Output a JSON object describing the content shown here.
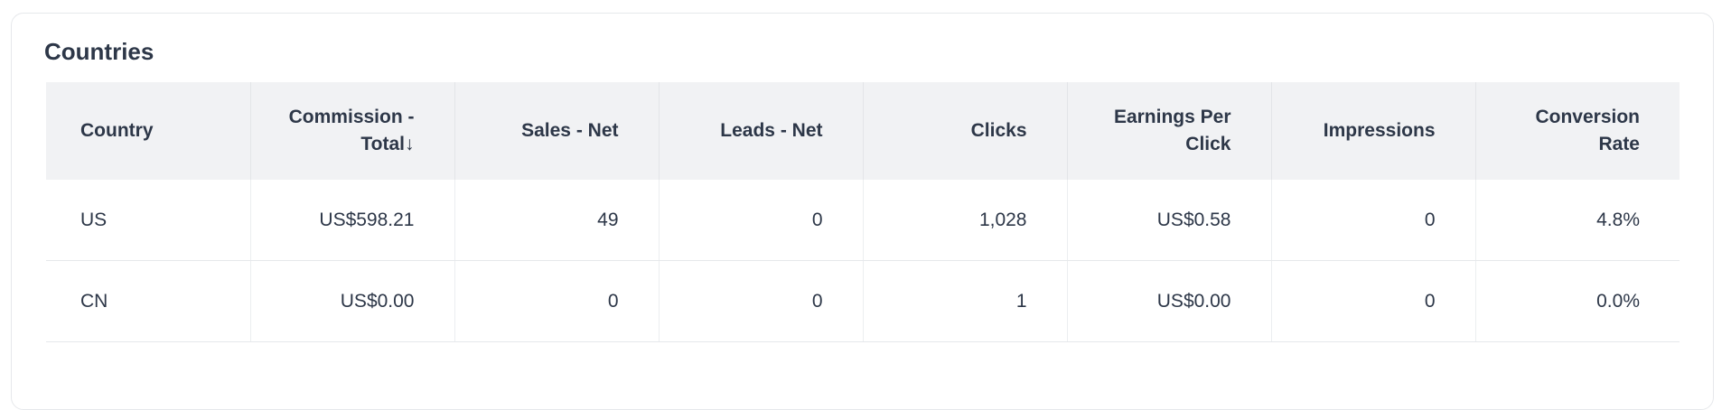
{
  "title": "Countries",
  "columns": [
    "Country",
    "Commission - Total",
    "Sales - Net",
    "Leads - Net",
    "Clicks",
    "Earnings Per Click",
    "Impressions",
    "Conversion Rate"
  ],
  "sort": {
    "column": "Commission - Total",
    "direction": "descending",
    "indicator": "↓"
  },
  "rows": [
    [
      "US",
      "US$598.21",
      "49",
      "0",
      "1,028",
      "US$0.58",
      "0",
      "4.8%"
    ],
    [
      "CN",
      "US$0.00",
      "0",
      "0",
      "1",
      "US$0.00",
      "0",
      "0.0%"
    ]
  ]
}
